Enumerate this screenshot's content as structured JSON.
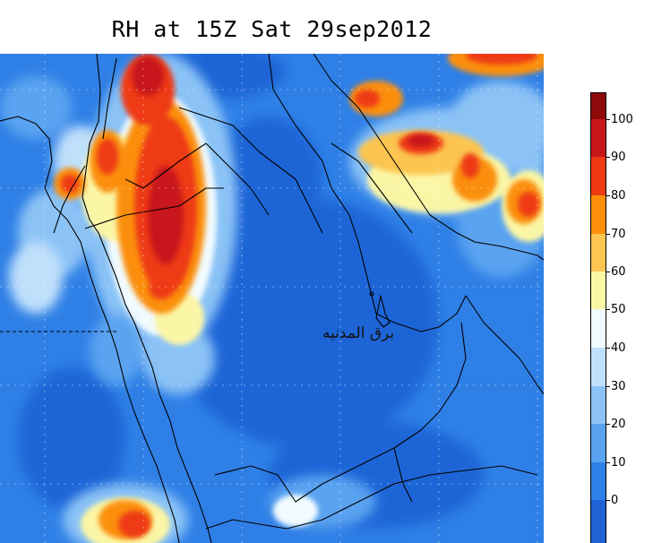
{
  "map": {
    "title": "RH at 15Z Sat 29sep2012",
    "watermark": "برق المدنيه",
    "colors": {
      "background": "#2f80e6",
      "land_dry": "#1f63d6"
    }
  },
  "colorbar": {
    "labels": [
      "100",
      "90",
      "80",
      "70",
      "60",
      "50",
      "40",
      "30",
      "20",
      "10",
      "0"
    ],
    "segments": [
      {
        "color": "#8e0a0a"
      },
      {
        "color": "#c8171a"
      },
      {
        "color": "#ee3a12"
      },
      {
        "color": "#fb8f0b"
      },
      {
        "color": "#fcc550"
      },
      {
        "color": "#fbf6a5"
      },
      {
        "color": "#f1fbff"
      },
      {
        "color": "#bfe0fb"
      },
      {
        "color": "#8bc3f6"
      },
      {
        "color": "#5aa3f0"
      },
      {
        "color": "#2f80e6"
      },
      {
        "color": "#1f63d6"
      }
    ]
  }
}
